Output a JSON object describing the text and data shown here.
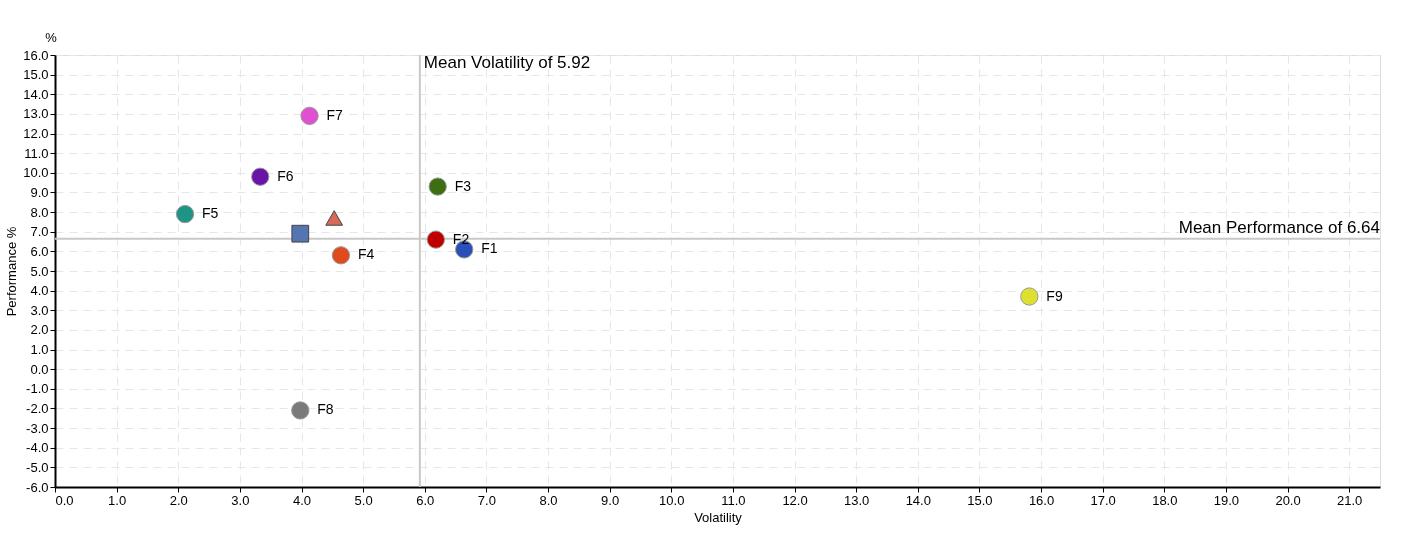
{
  "chart_data": {
    "type": "scatter",
    "xlabel": "Volatility",
    "ylabel": "Performance %",
    "annotations": [
      "%"
    ],
    "xlim": [
      0,
      21.5
    ],
    "ylim": [
      -6,
      16
    ],
    "xticks": [
      {
        "value": 0,
        "label": "0.0"
      },
      {
        "value": 1,
        "label": "1.0"
      },
      {
        "value": 2,
        "label": "2.0"
      },
      {
        "value": 3,
        "label": "3.0"
      },
      {
        "value": 4,
        "label": "4.0"
      },
      {
        "value": 5,
        "label": "5.0"
      },
      {
        "value": 6,
        "label": "6.0"
      },
      {
        "value": 7,
        "label": "7.0"
      },
      {
        "value": 8,
        "label": "8.0"
      },
      {
        "value": 9,
        "label": "9.0"
      },
      {
        "value": 10,
        "label": "10.0"
      },
      {
        "value": 11,
        "label": "11.0"
      },
      {
        "value": 12,
        "label": "12.0"
      },
      {
        "value": 13,
        "label": "13.0"
      },
      {
        "value": 14,
        "label": "14.0"
      },
      {
        "value": 15,
        "label": "15.0"
      },
      {
        "value": 16,
        "label": "16.0"
      },
      {
        "value": 17,
        "label": "17.0"
      },
      {
        "value": 18,
        "label": "18.0"
      },
      {
        "value": 19,
        "label": "19.0"
      },
      {
        "value": 20,
        "label": "20.0"
      },
      {
        "value": 21,
        "label": "21.0"
      }
    ],
    "yticks": [
      {
        "value": -6,
        "label": "-6.0"
      },
      {
        "value": -5,
        "label": "-5.0"
      },
      {
        "value": -4,
        "label": "-4.0"
      },
      {
        "value": -3,
        "label": "-3.0"
      },
      {
        "value": -2,
        "label": "-2.0"
      },
      {
        "value": -1,
        "label": "-1.0"
      },
      {
        "value": 0,
        "label": "0.0"
      },
      {
        "value": 1,
        "label": "1.0"
      },
      {
        "value": 2,
        "label": "2.0"
      },
      {
        "value": 3,
        "label": "3.0"
      },
      {
        "value": 4,
        "label": "4.0"
      },
      {
        "value": 5,
        "label": "5.0"
      },
      {
        "value": 6,
        "label": "6.0"
      },
      {
        "value": 7,
        "label": "7.0"
      },
      {
        "value": 8,
        "label": "8.0"
      },
      {
        "value": 9,
        "label": "9.0"
      },
      {
        "value": 10,
        "label": "10.0"
      },
      {
        "value": 11,
        "label": "11.0"
      },
      {
        "value": 12,
        "label": "12.0"
      },
      {
        "value": 13,
        "label": "13.0"
      },
      {
        "value": 14,
        "label": "14.0"
      },
      {
        "value": 15,
        "label": "15.0"
      },
      {
        "value": 16,
        "label": "16.0"
      }
    ],
    "grid": true,
    "marker": "circle",
    "ref_lines": [
      {
        "axis": "x",
        "value": 5.92,
        "label": "Mean Volatility of 5.92",
        "color": "#c8c8c8"
      },
      {
        "axis": "y",
        "value": 6.64,
        "label": "Mean Performance of 6.64",
        "color": "#c8c8c8"
      }
    ],
    "series": [
      {
        "name": "F1",
        "color": "#2a4fb8",
        "x": [
          6.64
        ],
        "values": [
          6.1
        ]
      },
      {
        "name": "F2",
        "color": "#c00000",
        "x": [
          6.18
        ],
        "values": [
          6.6
        ]
      },
      {
        "name": "F3",
        "color": "#3d6e12",
        "x": [
          6.21
        ],
        "values": [
          9.3
        ]
      },
      {
        "name": "F4",
        "color": "#e04a1e",
        "x": [
          4.64
        ],
        "values": [
          5.8
        ]
      },
      {
        "name": "F5",
        "color": "#1e9484",
        "x": [
          2.11
        ],
        "values": [
          7.9
        ]
      },
      {
        "name": "F6",
        "color": "#6a14a8",
        "x": [
          3.33
        ],
        "values": [
          9.8
        ]
      },
      {
        "name": "F7",
        "color": "#e050d0",
        "x": [
          4.13
        ],
        "values": [
          12.9
        ]
      },
      {
        "name": "F8",
        "color": "#7a7a7a",
        "x": [
          3.98
        ],
        "values": [
          -2.1
        ]
      },
      {
        "name": "F9",
        "color": "#dde030",
        "x": [
          15.81
        ],
        "values": [
          3.7
        ]
      },
      {
        "color": "#5575b0",
        "x": [
          3.98
        ],
        "values": [
          6.9
        ],
        "marker": "square"
      },
      {
        "color": "#d9695a",
        "x": [
          4.53
        ],
        "values": [
          7.7
        ],
        "marker": "triangle"
      }
    ]
  }
}
